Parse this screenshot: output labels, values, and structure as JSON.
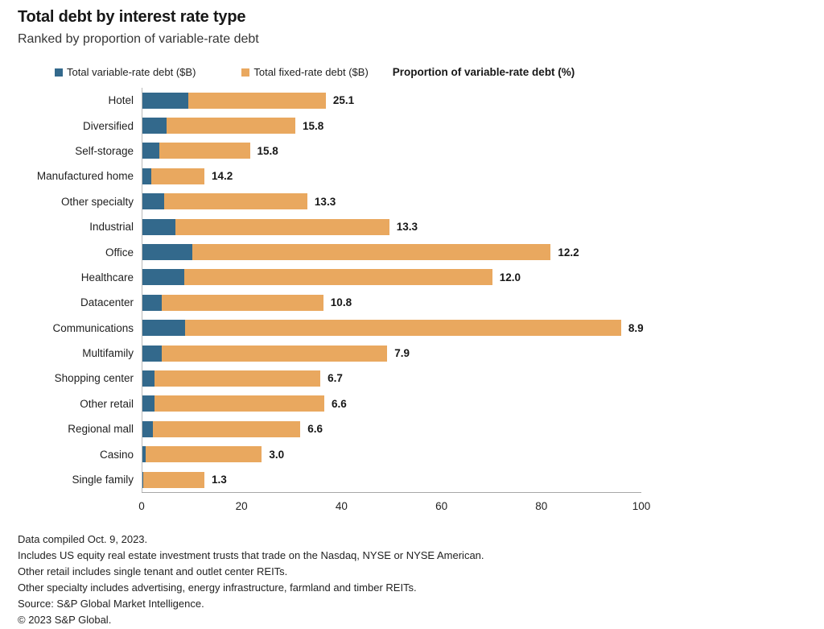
{
  "title": "Total debt by interest rate type",
  "subtitle": "Ranked by proportion of variable-rate debt",
  "legend": {
    "variable_label": "Total variable-rate debt ($B)",
    "fixed_label": "Total fixed-rate debt ($B)",
    "proportion_label": "Proportion of variable-rate debt (%)"
  },
  "colors": {
    "variable": "#33698c",
    "fixed": "#e9a85f",
    "axis": "#b9b9b9",
    "text": "#1a1a1a"
  },
  "chart_data": {
    "type": "bar",
    "orientation": "horizontal",
    "stacked": true,
    "title": "Total debt by interest rate type",
    "subtitle": "Ranked by proportion of variable-rate debt",
    "xlabel": "",
    "ylabel": "",
    "xlim": [
      0,
      100
    ],
    "x_ticks": [
      0,
      20,
      40,
      60,
      80,
      100
    ],
    "grid": false,
    "legend_position": "top",
    "categories": [
      "Hotel",
      "Diversified",
      "Self-storage",
      "Manufactured home",
      "Other specialty",
      "Industrial",
      "Office",
      "Healthcare",
      "Datacenter",
      "Communications",
      "Multifamily",
      "Shopping center",
      "Other retail",
      "Regional mall",
      "Casino",
      "Single family"
    ],
    "series": [
      {
        "name": "Total variable-rate debt ($B)",
        "values": [
          9.2,
          4.8,
          3.4,
          1.8,
          4.4,
          6.6,
          10.0,
          8.4,
          3.9,
          8.5,
          3.9,
          2.4,
          2.4,
          2.1,
          0.7,
          0.2
        ]
      },
      {
        "name": "Total fixed-rate debt ($B)",
        "values": [
          27.5,
          25.8,
          18.1,
          10.6,
          28.6,
          42.8,
          71.7,
          61.6,
          32.3,
          87.3,
          45.1,
          33.2,
          34.0,
          29.5,
          23.2,
          12.2
        ]
      }
    ],
    "bar_labels": {
      "name": "Proportion of variable-rate debt (%)",
      "values": [
        "25.1",
        "15.8",
        "15.8",
        "14.2",
        "13.3",
        "13.3",
        "12.2",
        "12.0",
        "10.8",
        "8.9",
        "7.9",
        "6.7",
        "6.6",
        "6.6",
        "3.0",
        "1.3"
      ]
    }
  },
  "footnotes": [
    "Data compiled Oct. 9, 2023.",
    "Includes US equity real estate investment trusts that trade on the Nasdaq, NYSE or NYSE American.",
    "Other retail includes single tenant and outlet center REITs.",
    "Other specialty includes advertising, energy infrastructure, farmland and timber REITs.",
    "Source: S&P Global Market Intelligence.",
    "© 2023 S&P Global."
  ]
}
